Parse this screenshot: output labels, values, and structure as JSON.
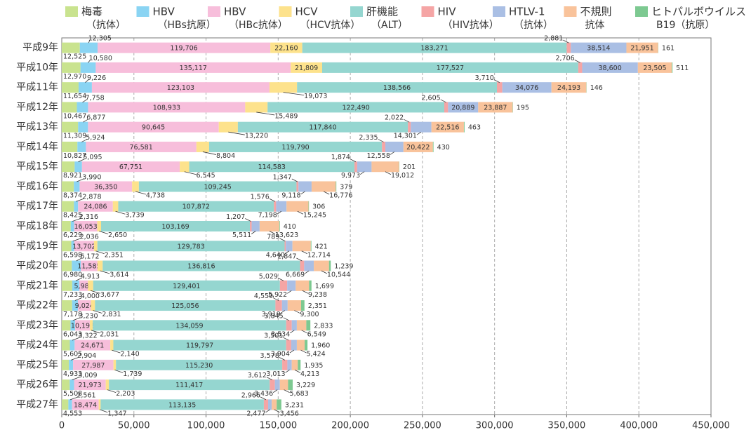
{
  "chart_data": {
    "type": "stacked-barh",
    "categories": [
      "平成9年",
      "平成10年",
      "平成11年",
      "平成12年",
      "平成13年",
      "平成14年",
      "平成15年",
      "平成16年",
      "平成17年",
      "平成18年",
      "平成19年",
      "平成20年",
      "平成21年",
      "平成22年",
      "平成23年",
      "平成24年",
      "平成25年",
      "平成26年",
      "平成27年"
    ],
    "series": [
      {
        "name": [
          "梅毒",
          "（抗体）"
        ],
        "color": "#c9e38f",
        "values": [
          12525,
          12970,
          11654,
          10467,
          11309,
          10827,
          8921,
          8374,
          8425,
          6229,
          6598,
          6980,
          7233,
          7178,
          6043,
          5605,
          4933,
          5508,
          4553
        ],
        "value_labels": [
          "12,525",
          "12,970",
          "11,654",
          "10,467",
          "11,309",
          "10,827",
          "8,921",
          "8,374",
          "8,425",
          "6,229",
          "6,598",
          "6,980",
          "7,233",
          "7,178",
          "6,043",
          "5,605",
          "4,933",
          "5,508",
          "4,553"
        ]
      },
      {
        "name": [
          "HBV",
          "（HBs抗原）"
        ],
        "color": "#8ad4f3",
        "values": [
          12305,
          10580,
          9226,
          7758,
          6877,
          5924,
          5095,
          3990,
          2878,
          2316,
          2036,
          6172,
          4913,
          4000,
          3230,
          3322,
          2904,
          3009,
          2561
        ],
        "value_labels": [
          "12,305",
          "10,580",
          "9,226",
          "7,758",
          "6,877",
          "5,924",
          "5,095",
          "3,990",
          "2,878",
          "2,316",
          "2,036",
          "6,172",
          "4,913",
          "4,000",
          "3,230",
          "3,322",
          "2,904",
          "3,009",
          "2,561"
        ]
      },
      {
        "name": [
          "HBV",
          "（HBc抗体）"
        ],
        "color": "#f7bedb",
        "values": [
          119706,
          135117,
          123103,
          108933,
          90645,
          76581,
          67751,
          36350,
          24086,
          16053,
          13702,
          11585,
          5981,
          9024,
          10193,
          24671,
          27987,
          21973,
          18474
        ],
        "value_labels": [
          "119,706",
          "135,117",
          "123,103",
          "108,933",
          "90,645",
          "76,581",
          "67,751",
          "36,350",
          "24,086",
          "16,053",
          "13,702",
          "11,585",
          "5,981",
          "9,024",
          "10,193",
          "24,671",
          "27,987",
          "21,973",
          "18,474"
        ]
      },
      {
        "name": [
          "HCV",
          "（HCV抗体）"
        ],
        "color": "#fde28c",
        "values": [
          22160,
          21809,
          19073,
          15489,
          13220,
          8804,
          6545,
          4738,
          3739,
          2650,
          2351,
          3614,
          3677,
          2831,
          2031,
          2140,
          1739,
          2203,
          1347
        ],
        "value_labels": [
          "22,160",
          "21,809",
          "19,073",
          "15,489",
          "13,220",
          "8,804",
          "6,545",
          "4,738",
          "3,739",
          "2,650",
          "2,351",
          "3,614",
          "3,677",
          "2,831",
          "2,031",
          "2,140",
          "1,739",
          "2,203",
          "1,347"
        ]
      },
      {
        "name": [
          "肝機能",
          "（ALT）"
        ],
        "color": "#95d6d0",
        "values": [
          183271,
          177527,
          138566,
          122490,
          117840,
          119790,
          114583,
          109245,
          107872,
          103169,
          129783,
          136816,
          129401,
          125056,
          134059,
          119797,
          115230,
          111417,
          113135
        ],
        "value_labels": [
          "183,271",
          "177,527",
          "138,566",
          "122,490",
          "117,840",
          "119,790",
          "114,583",
          "109,245",
          "107,872",
          "103,169",
          "129,783",
          "136,816",
          "129,401",
          "125,056",
          "134,059",
          "119,797",
          "115,230",
          "111,417",
          "113,135"
        ]
      },
      {
        "name": [
          "HIV",
          "（HIV抗体）"
        ],
        "color": "#f5a5a5",
        "values": [
          2881,
          2706,
          3710,
          2605,
          2022,
          2335,
          1874,
          1347,
          1576,
          1207,
          789,
          2847,
          5029,
          4559,
          3845,
          3501,
          3578,
          3612,
          2966
        ],
        "value_labels": [
          "2,881",
          "2,706",
          "3,710",
          "2,605",
          "2,022",
          "2,335",
          "1,874",
          "1,347",
          "1,576",
          "1,207",
          "789",
          "2,847",
          "5,029",
          "4,559",
          "3,845",
          "3,501",
          "3,578",
          "3,612",
          "2,966"
        ]
      },
      {
        "name": [
          "HTLV-1",
          "（抗体）"
        ],
        "color": "#aabfe4",
        "values": [
          38514,
          38600,
          34076,
          20889,
          14301,
          12558,
          9973,
          9118,
          7198,
          5511,
          4640,
          6669,
          5922,
          3919,
          3534,
          3904,
          3013,
          3436,
          2477
        ],
        "value_labels": [
          "38,514",
          "38,600",
          "34,076",
          "20,889",
          "14,301",
          "12,558",
          "9,973",
          "9,118",
          "7,198",
          "5,511",
          "4,640",
          "6,669",
          "5,922",
          "3,919",
          "3,534",
          "3,904",
          "3,013",
          "3,436",
          "2,477"
        ]
      },
      {
        "name": [
          "不規則",
          "抗体"
        ],
        "color": "#f9c39b",
        "values": [
          21951,
          23505,
          24193,
          23887,
          22516,
          20422,
          19012,
          16776,
          15245,
          13623,
          12714,
          10544,
          9238,
          9300,
          6549,
          5424,
          4213,
          5683,
          3456
        ],
        "value_labels": [
          "21,951",
          "23,505",
          "24,193",
          "23,887",
          "22,516",
          "20,422",
          "19,012",
          "16,776",
          "15,245",
          "13,623",
          "12,714",
          "10,544",
          "9,238",
          "9,300",
          "6,549",
          "5,424",
          "4,213",
          "5,683",
          "3,456"
        ]
      },
      {
        "name": [
          "ヒトパルボウイルス",
          "B19（抗原）"
        ],
        "color": "#7dc991",
        "values": [
          161,
          511,
          146,
          195,
          463,
          430,
          201,
          379,
          306,
          410,
          421,
          1239,
          1699,
          2351,
          2833,
          1960,
          1935,
          3229,
          3231
        ],
        "value_labels": [
          "161",
          "511",
          "146",
          "195",
          "463",
          "430",
          "201",
          "379",
          "306",
          "410",
          "421",
          "1,239",
          "1,699",
          "2,351",
          "2,833",
          "1,960",
          "1,935",
          "3,229",
          "3,231"
        ]
      }
    ],
    "xlim": [
      0,
      450000
    ],
    "xticks": [
      0,
      {
        "value": 50000,
        "label": "50,000"
      },
      {
        "value": 100000,
        "label": "100,000"
      },
      {
        "value": 150000,
        "label": "150,000"
      },
      {
        "value": 200000,
        "label": "200,000"
      },
      {
        "value": 250000,
        "label": "250,000"
      },
      {
        "value": 300000,
        "label": "300,000"
      },
      {
        "value": 350000,
        "label": "350,000"
      },
      {
        "value": 400000,
        "label": "400,000"
      },
      {
        "value": 450000,
        "label": "450,000"
      }
    ],
    "grid": true
  }
}
